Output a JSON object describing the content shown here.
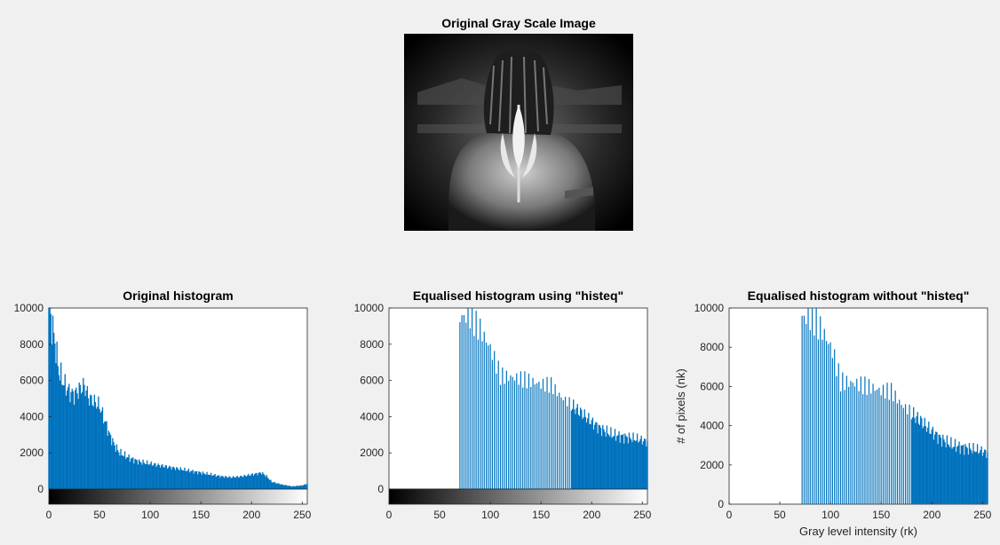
{
  "image_panel": {
    "title": "Original Gray Scale Image"
  },
  "chart_data": [
    {
      "type": "bar",
      "title": "Original histogram",
      "xlabel": "",
      "ylabel": "",
      "xlim": [
        0,
        255
      ],
      "ylim": [
        0,
        10000
      ],
      "xticks": [
        0,
        50,
        100,
        150,
        200,
        250
      ],
      "yticks": [
        0,
        2000,
        4000,
        6000,
        8000,
        10000
      ],
      "colorbar": "grayscale 0-255",
      "color": "#0072bd",
      "x": [
        0,
        5,
        10,
        15,
        20,
        25,
        30,
        35,
        40,
        45,
        50,
        55,
        60,
        65,
        70,
        80,
        90,
        100,
        110,
        120,
        130,
        140,
        150,
        160,
        170,
        180,
        190,
        200,
        205,
        210,
        215,
        220,
        230,
        240,
        250,
        255
      ],
      "y": [
        10000,
        8500,
        6500,
        5800,
        5400,
        5200,
        5500,
        5700,
        5000,
        4800,
        4600,
        3800,
        3000,
        2400,
        2000,
        1700,
        1500,
        1400,
        1300,
        1200,
        1100,
        1000,
        900,
        800,
        700,
        650,
        700,
        800,
        850,
        900,
        700,
        400,
        250,
        150,
        200,
        300
      ]
    },
    {
      "type": "bar",
      "title": "Equalised histogram using \"histeq\"",
      "xlabel": "",
      "ylabel": "",
      "xlim": [
        0,
        255
      ],
      "ylim": [
        0,
        10000
      ],
      "xticks": [
        0,
        50,
        100,
        150,
        200,
        250
      ],
      "yticks": [
        0,
        2000,
        4000,
        6000,
        8000,
        10000
      ],
      "colorbar": "grayscale 0-255",
      "color": "#0072bd",
      "x": [
        70,
        75,
        80,
        85,
        90,
        95,
        100,
        110,
        120,
        130,
        140,
        150,
        160,
        170,
        180,
        190,
        200,
        210,
        220,
        230,
        240,
        250,
        255
      ],
      "y": [
        10000,
        10000,
        10000,
        9600,
        9200,
        8600,
        8000,
        6300,
        6100,
        5900,
        5700,
        5500,
        5500,
        4900,
        4600,
        4200,
        3700,
        3300,
        3000,
        2900,
        2800,
        2700,
        2600
      ]
    },
    {
      "type": "bar",
      "title": "Equalised histogram without \"histeq\"",
      "xlabel": "Gray level intensity (rk)",
      "ylabel": "# of pixels (nk)",
      "xlim": [
        0,
        255
      ],
      "ylim": [
        0,
        10000
      ],
      "xticks": [
        0,
        50,
        100,
        150,
        200,
        250
      ],
      "yticks": [
        0,
        2000,
        4000,
        6000,
        8000,
        10000
      ],
      "color": "#0072bd",
      "x": [
        72,
        77,
        82,
        87,
        92,
        97,
        102,
        110,
        120,
        130,
        140,
        150,
        160,
        170,
        180,
        190,
        200,
        210,
        220,
        230,
        240,
        250,
        255
      ],
      "y": [
        10000,
        10000,
        10000,
        9600,
        9200,
        8600,
        8000,
        6300,
        6100,
        5900,
        5700,
        5500,
        5500,
        4900,
        4600,
        4200,
        3700,
        3300,
        3000,
        2900,
        2800,
        2700,
        2600
      ]
    }
  ]
}
